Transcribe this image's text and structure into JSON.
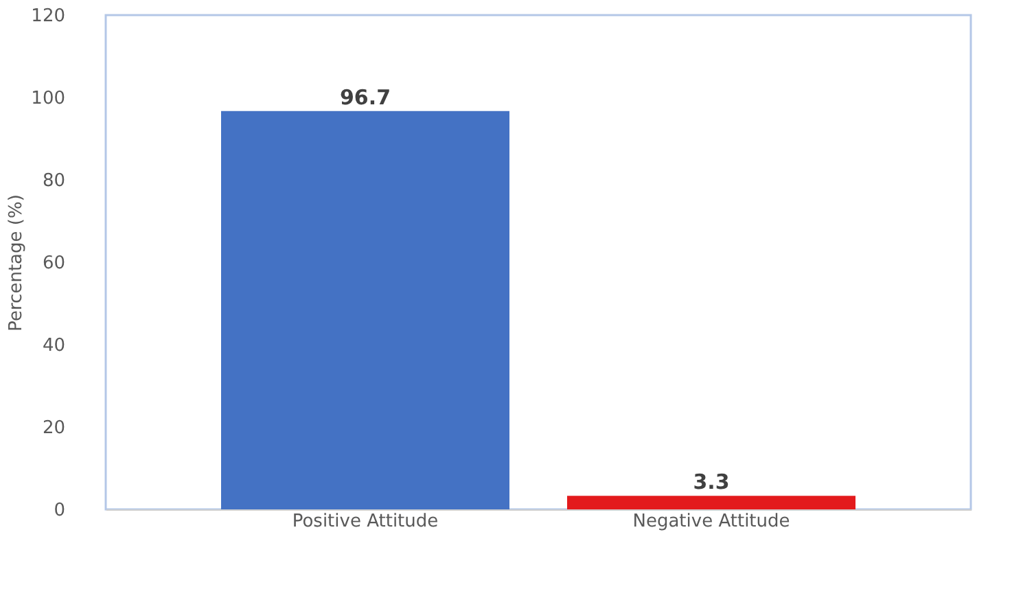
{
  "chart_data": {
    "type": "bar",
    "ylabel": "Percentage (%)",
    "categories": [
      "Positive Attitude",
      "Negative Attitude"
    ],
    "values": [
      96.7,
      3.3
    ],
    "colors": [
      "#4472c4",
      "#e31a1c"
    ],
    "ylim": [
      0,
      120
    ],
    "yticks": [
      0,
      20,
      40,
      60,
      80,
      100,
      120
    ],
    "grid": false,
    "data_labels": true
  }
}
